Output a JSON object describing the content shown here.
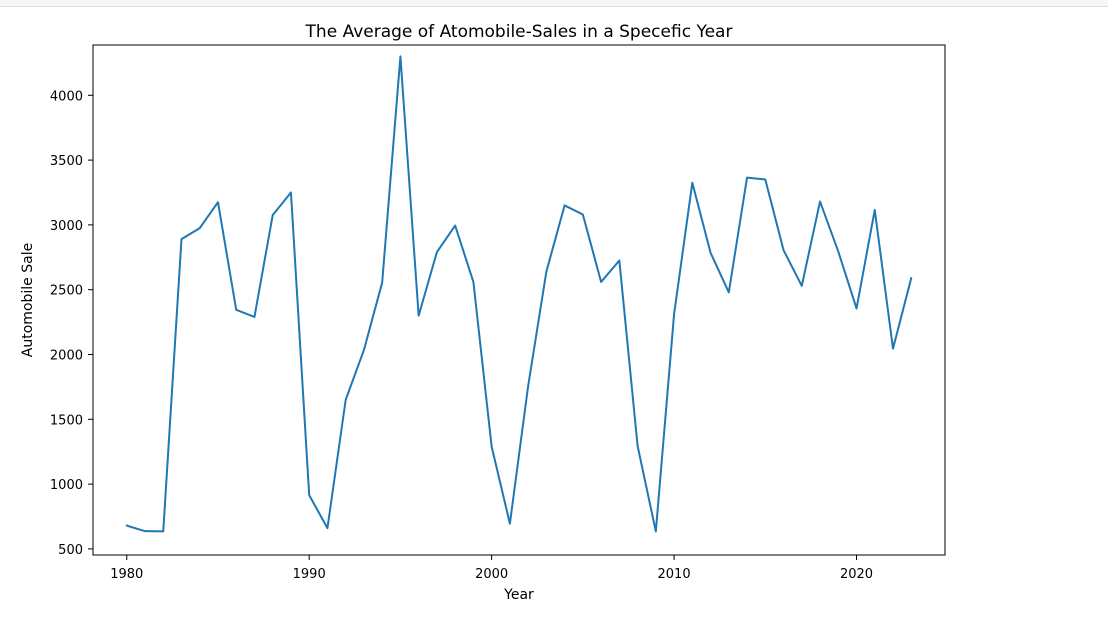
{
  "chart_data": {
    "type": "line",
    "title": "The Average of Atomobile-Sales in a Specefic Year",
    "xlabel": "Year",
    "ylabel": "Automobile Sale",
    "xlim": [
      1978.15,
      2024.85
    ],
    "ylim": [
      453,
      4388
    ],
    "xticks": [
      1980,
      1990,
      2000,
      2010,
      2020
    ],
    "yticks": [
      500,
      1000,
      1500,
      2000,
      2500,
      3000,
      3500,
      4000
    ],
    "grid": false,
    "color": "#1f77b4",
    "x": [
      1980,
      1981,
      1982,
      1983,
      1984,
      1985,
      1986,
      1987,
      1988,
      1989,
      1990,
      1991,
      1992,
      1993,
      1994,
      1995,
      1996,
      1997,
      1998,
      1999,
      2000,
      2001,
      2002,
      2003,
      2004,
      2005,
      2006,
      2007,
      2008,
      2009,
      2010,
      2011,
      2012,
      2013,
      2014,
      2015,
      2016,
      2017,
      2018,
      2019,
      2020,
      2021,
      2022,
      2023
    ],
    "y": [
      680,
      637,
      635,
      2890,
      2975,
      3175,
      2345,
      2290,
      3075,
      3250,
      915,
      660,
      1650,
      2035,
      2555,
      4300,
      2300,
      2790,
      2995,
      2560,
      1290,
      695,
      1755,
      2640,
      3150,
      3080,
      2560,
      2725,
      1295,
      635,
      2310,
      3325,
      2785,
      2480,
      3365,
      3350,
      2805,
      2530,
      3180,
      2795,
      2355,
      3115,
      2045,
      2590
    ]
  }
}
